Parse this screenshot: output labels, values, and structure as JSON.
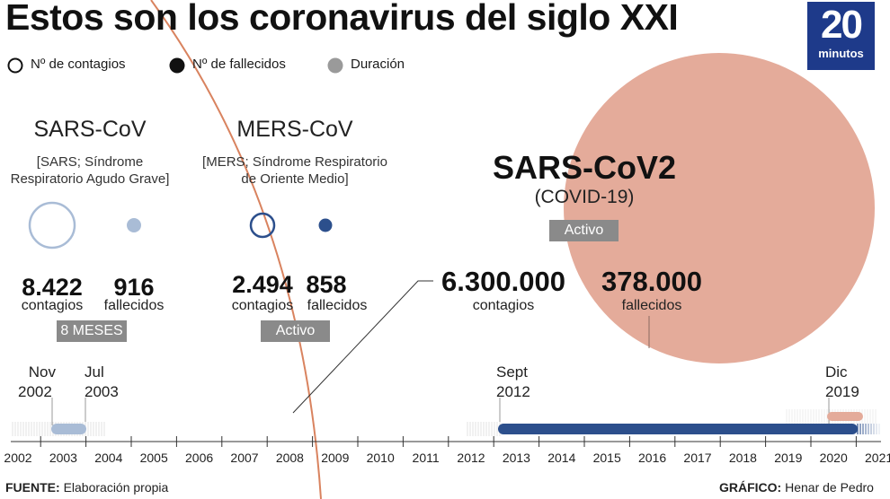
{
  "title": "Estos son los coronavirus del siglo XXI",
  "logo": {
    "number": "20",
    "word": "minutos"
  },
  "legend": {
    "contagios": "Nº de contagios",
    "fallecidos": "Nº de fallecidos",
    "duracion": "Duración"
  },
  "sars": {
    "name": "SARS-CoV",
    "desc_line1": "[SARS; Síndrome",
    "desc_line2": "Respiratorio Agudo Grave]",
    "contagios_value": "8.422",
    "contagios_label": "contagios",
    "fallecidos_value": "916",
    "fallecidos_label": "fallecidos",
    "duration": "8 MESES"
  },
  "mers": {
    "name": "MERS-CoV",
    "desc_line1": "[MERS; Síndrome Respiratorio",
    "desc_line2": "de Oriente Medio]",
    "contagios_value": "2.494",
    "contagios_label": "contagios",
    "fallecidos_value": "858",
    "fallecidos_label": "fallecidos",
    "status": "Activo"
  },
  "covid": {
    "name": "SARS-CoV2",
    "sub": "(COVID-19)",
    "status": "Activo",
    "contagios_value": "6.300.000",
    "contagios_label": "contagios",
    "fallecidos_value": "378.000",
    "fallecidos_label": "fallecidos"
  },
  "timeline": {
    "years": [
      "2002",
      "2003",
      "2004",
      "2005",
      "2006",
      "2007",
      "2008",
      "2009",
      "2010",
      "2011",
      "2012",
      "2013",
      "2014",
      "2015",
      "2016",
      "2017",
      "2018",
      "2019",
      "2020",
      "2021"
    ],
    "markers": {
      "sars_start": {
        "line1": "Nov",
        "line2": "2002"
      },
      "sars_end": {
        "line1": "Jul",
        "line2": "2003"
      },
      "mers_start": {
        "line1": "Sept",
        "line2": "2012"
      },
      "covid_start": {
        "line1": "Dic",
        "line2": "2019"
      }
    }
  },
  "footer": {
    "source_label": "FUENTE:",
    "source_value": "Elaboración propia",
    "graphic_label": "GRÁFICO:",
    "graphic_value": "Henar de Pedro"
  },
  "colors": {
    "sars": "#a9bcd6",
    "mers": "#2c4f8c",
    "covid": "#e4ab9a",
    "logo": "#1e3a8a",
    "badge": "#8a8a8a"
  }
}
